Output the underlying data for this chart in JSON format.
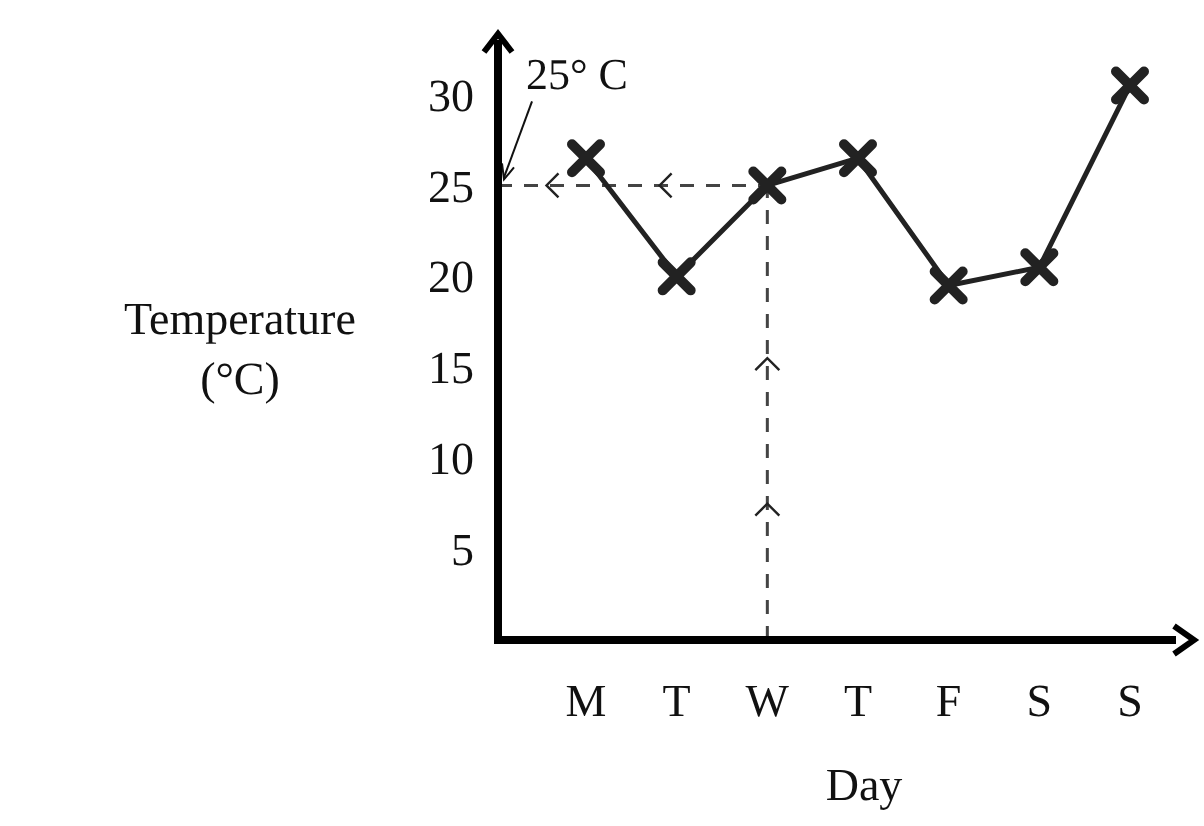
{
  "chart_data": {
    "type": "line",
    "xlabel": "Day",
    "ylabel": "Temperature (°C)",
    "categories": [
      "M",
      "T",
      "W",
      "T",
      "F",
      "S",
      "S"
    ],
    "series": [
      {
        "color": "#222222",
        "values": [
          26.5,
          20,
          25,
          26.5,
          19.5,
          20.5,
          30.5
        ]
      }
    ],
    "ylim": [
      0,
      33
    ],
    "yticks": [
      5,
      10,
      15,
      20,
      25,
      30
    ],
    "marker": "cross",
    "line_style": "solid",
    "grid": false,
    "ref_lines": [
      {
        "axis": "y",
        "value": 25,
        "label": "25° C",
        "line_style": "dashed"
      },
      {
        "axis": "x",
        "value": "W",
        "line_style": "dashed"
      }
    ]
  }
}
